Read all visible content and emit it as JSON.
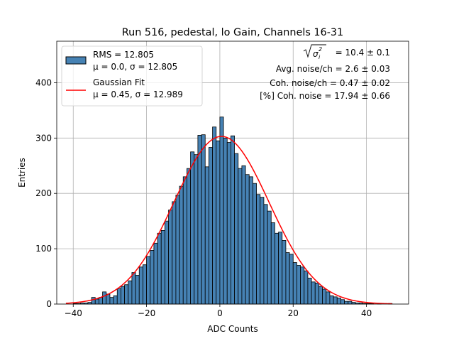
{
  "chart_data": {
    "type": "bar",
    "title": "Run 516, pedestal, lo Gain, Channels 16-31",
    "xlabel": "ADC Counts",
    "ylabel": "Entries",
    "xlim": [
      -44.5,
      51.5
    ],
    "ylim": [
      0,
      475
    ],
    "xticks": [
      -40,
      -20,
      0,
      20,
      40
    ],
    "yticks": [
      0,
      100,
      200,
      300,
      400
    ],
    "xtick_labels": [
      "−40",
      "−20",
      "0",
      "20",
      "40"
    ],
    "ytick_labels": [
      "0",
      "100",
      "200",
      "300",
      "400"
    ],
    "grid": true,
    "bin_width": 1,
    "histogram": {
      "name_line1": "RMS = 12.805",
      "name_line2": "μ = 0.0, σ = 12.805",
      "color": "#4682b4",
      "edge_color": "#000000",
      "bin_left_edges": [
        -32,
        -31,
        -30,
        -29,
        -28,
        -27,
        -26,
        -25,
        -24,
        -23,
        -22,
        -21,
        -20,
        -19,
        -18,
        -17,
        -16,
        -15,
        -14,
        -13,
        -12,
        -11,
        -10,
        -9,
        -8,
        -7,
        -6,
        -5,
        -4,
        -3,
        -2,
        -1,
        0,
        1,
        2,
        3,
        4,
        5,
        6,
        7,
        8,
        9,
        10,
        11,
        12,
        13,
        14,
        15,
        16,
        17,
        18,
        19,
        20,
        21,
        22,
        23,
        24,
        25,
        26,
        27,
        28,
        29,
        30,
        31,
        32,
        33,
        34,
        35,
        36
      ],
      "values": [
        22,
        18,
        12,
        15,
        28,
        32,
        35,
        42,
        57,
        52,
        67,
        71,
        86,
        97,
        110,
        128,
        133,
        150,
        170,
        185,
        197,
        213,
        230,
        245,
        275,
        270,
        305,
        306,
        248,
        283,
        320,
        295,
        338,
        300,
        292,
        304,
        272,
        245,
        250,
        234,
        230,
        218,
        198,
        193,
        180,
        168,
        147,
        128,
        130,
        115,
        93,
        90,
        75,
        70,
        67,
        60,
        47,
        40,
        38,
        32,
        27,
        22,
        15,
        13,
        11,
        8,
        5,
        5,
        3
      ],
      "tail_left": [
        {
          "x": -40,
          "y": 1
        },
        {
          "x": -39,
          "y": 1
        },
        {
          "x": -38,
          "y": 2
        },
        {
          "x": -37,
          "y": 2
        },
        {
          "x": -36,
          "y": 3
        },
        {
          "x": -35,
          "y": 12
        },
        {
          "x": -34,
          "y": 9
        },
        {
          "x": -33,
          "y": 12
        }
      ],
      "tail_right": [
        {
          "x": 37,
          "y": 2
        },
        {
          "x": 38,
          "y": 2
        },
        {
          "x": 39,
          "y": 1
        },
        {
          "x": 40,
          "y": 1
        },
        {
          "x": 41,
          "y": 1
        },
        {
          "x": 43,
          "y": 1
        },
        {
          "x": 46,
          "y": 1
        }
      ]
    },
    "fit": {
      "name_line1": "Gaussian Fit",
      "name_line2": "μ = 0.45, σ = 12.989",
      "color": "#ff0000",
      "mu": 0.45,
      "sigma": 12.989,
      "amplitude": 303,
      "x_range": [
        -42,
        47
      ]
    },
    "legend_position": "upper-left",
    "annotations": {
      "line1_suffix": " = 10.4 ± 0.1",
      "line2": "Avg. noise/ch = 2.6 ± 0.03",
      "line3": "Coh. noise/ch = 0.47 ± 0.02",
      "line4": "[%] Coh. noise = 17.94 ± 0.66"
    }
  }
}
